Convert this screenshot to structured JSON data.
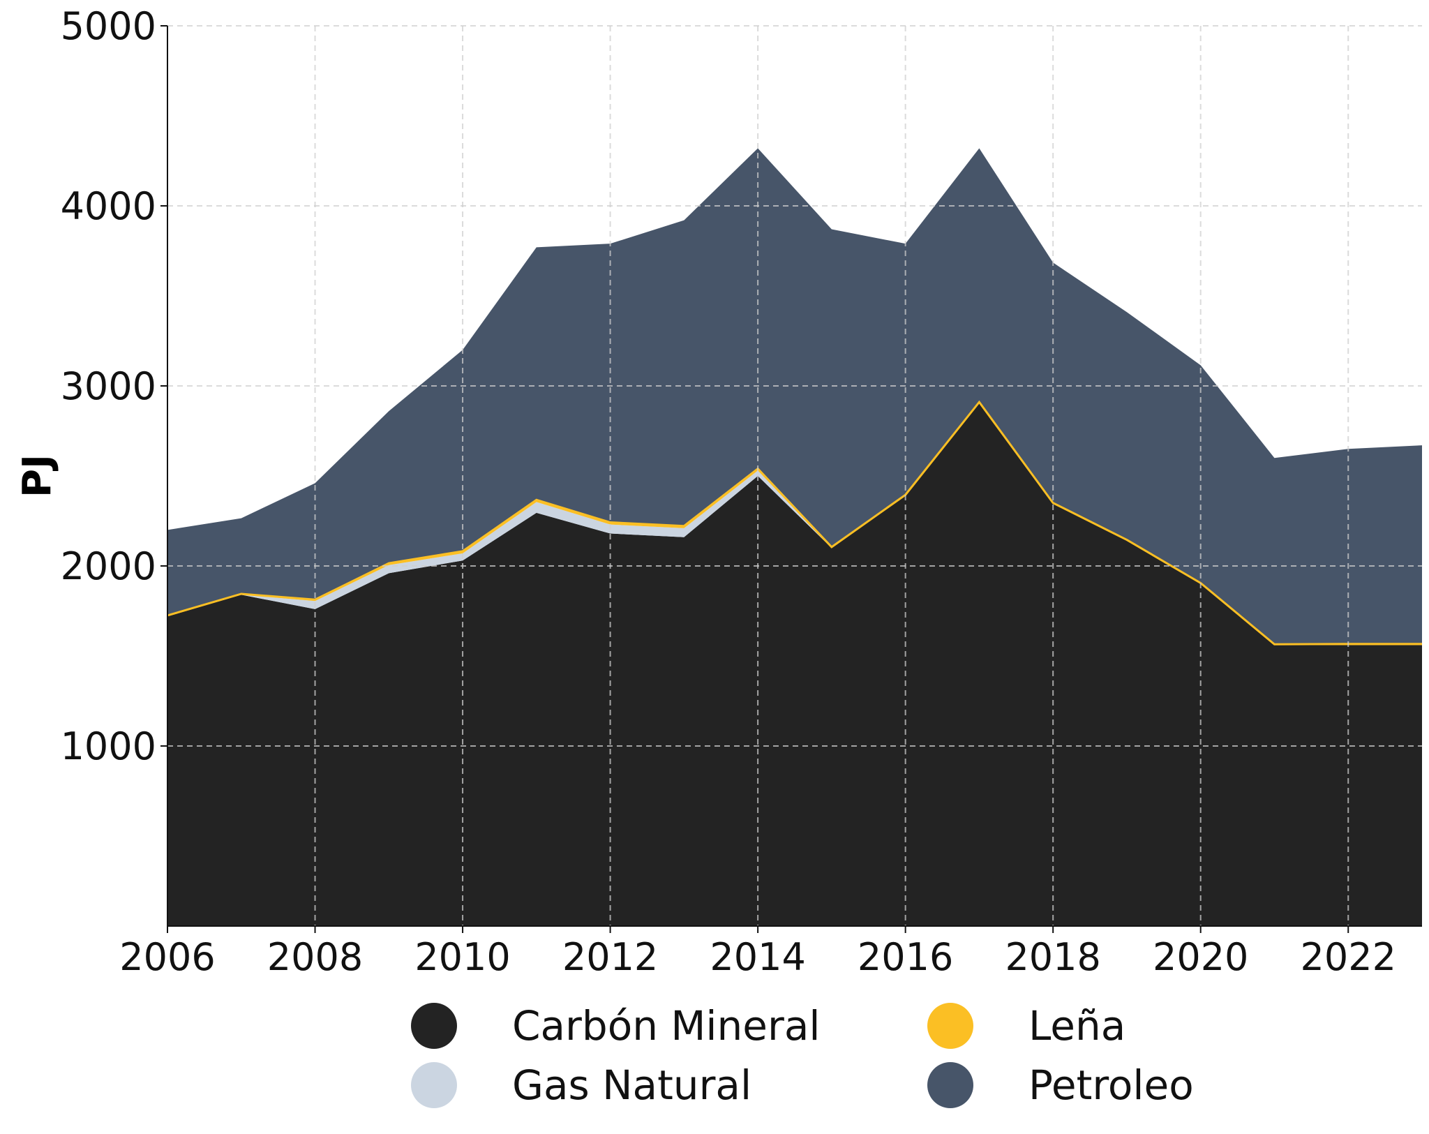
{
  "chart_data": {
    "type": "area",
    "x": [
      2006,
      2007,
      2008,
      2009,
      2010,
      2011,
      2012,
      2013,
      2014,
      2015,
      2016,
      2017,
      2018,
      2019,
      2020,
      2021,
      2022,
      2023
    ],
    "xticks": [
      "2006",
      "2008",
      "2010",
      "2012",
      "2014",
      "2016",
      "2018",
      "2020",
      "2022"
    ],
    "yticks": [
      "1000",
      "2000",
      "3000",
      "4000",
      "5000"
    ],
    "xlim": [
      2006,
      2023
    ],
    "ylim": [
      0,
      5000
    ],
    "title": "",
    "xlabel": "",
    "ylabel": "PJ",
    "grid": true,
    "stacked": true,
    "legend_position": "bottom",
    "series": [
      {
        "name": "Carbón Mineral",
        "color": "#232323",
        "values": [
          1720,
          1840,
          1760,
          1960,
          2030,
          2295,
          2180,
          2160,
          2500,
          2100,
          2390,
          2905,
          2345,
          2140,
          1900,
          1560,
          1560,
          1560
        ]
      },
      {
        "name": "Gas Natural",
        "color": "#cbd5e1",
        "values": [
          0,
          0,
          45,
          45,
          40,
          60,
          50,
          50,
          30,
          0,
          0,
          0,
          0,
          0,
          0,
          0,
          0,
          0
        ]
      },
      {
        "name": "Leña",
        "color": "#fbbf24",
        "values": [
          5,
          5,
          8,
          10,
          12,
          12,
          12,
          12,
          10,
          5,
          5,
          5,
          5,
          5,
          5,
          5,
          7,
          7
        ]
      },
      {
        "name": "Petroleo",
        "color": "#475569",
        "values": [
          475,
          420,
          647,
          845,
          1118,
          1403,
          1548,
          1698,
          1780,
          1765,
          1395,
          1410,
          1335,
          1265,
          1210,
          1035,
          1083,
          1103
        ]
      }
    ]
  }
}
